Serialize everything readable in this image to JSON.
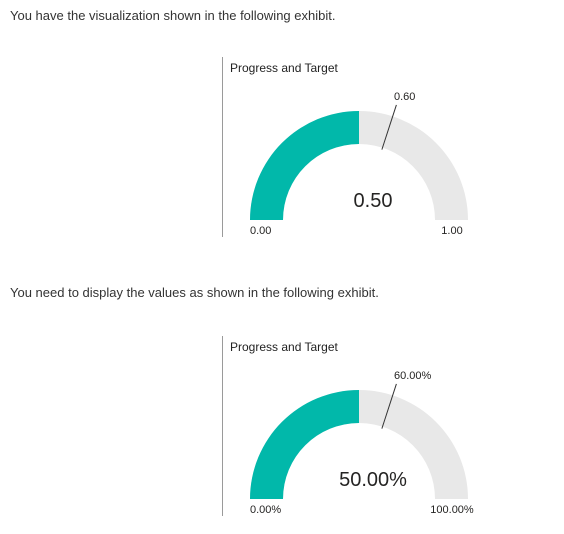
{
  "prompts": [
    "You have the visualization shown in the following exhibit.",
    "You need to display the values as shown in the following exhibit."
  ],
  "colors": {
    "fill": "#01b8aa",
    "track": "#e8e8e8",
    "target": "#333333"
  },
  "chart_data": [
    {
      "type": "gauge",
      "title": "Progress and Target",
      "value": 0.5,
      "target": 0.6,
      "min": 0,
      "max": 1,
      "value_label": "0.50",
      "target_label": "0.60",
      "min_label": "0.00",
      "max_label": "1.00"
    },
    {
      "type": "gauge",
      "title": "Progress and Target",
      "value": 0.5,
      "target": 0.6,
      "min": 0,
      "max": 1,
      "value_label": "50.00%",
      "target_label": "60.00%",
      "min_label": "0.00%",
      "max_label": "100.00%"
    }
  ]
}
